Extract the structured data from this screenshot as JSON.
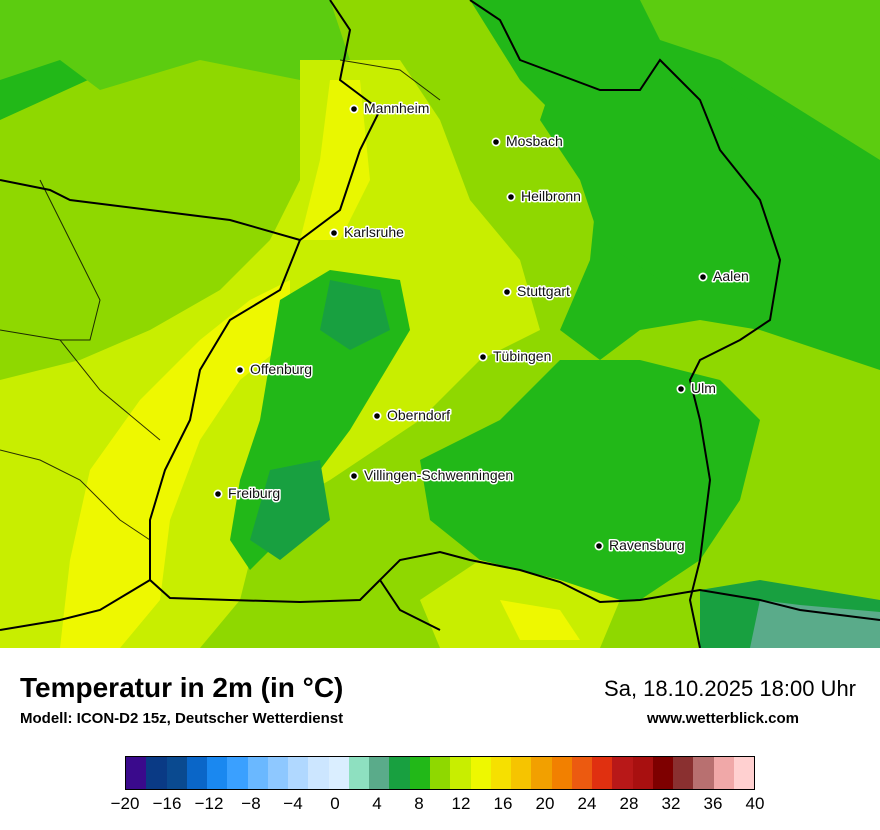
{
  "map": {
    "cities": [
      {
        "name": "Mannheim",
        "marker": "city-dot"
      },
      {
        "name": "Mosbach",
        "marker": "city-dot"
      },
      {
        "name": "Heilbronn",
        "marker": "city-dot"
      },
      {
        "name": "Karlsruhe",
        "marker": "city-dot"
      },
      {
        "name": "Aalen",
        "marker": "city-dot"
      },
      {
        "name": "Stuttgart",
        "marker": "city-dot"
      },
      {
        "name": "Tübingen",
        "marker": "city-dot"
      },
      {
        "name": "Offenburg",
        "marker": "city-dot"
      },
      {
        "name": "Ulm",
        "marker": "city-dot"
      },
      {
        "name": "Oberndorf",
        "marker": "city-dot"
      },
      {
        "name": "Villingen-Schwenningen",
        "marker": "city-dot"
      },
      {
        "name": "Freiburg",
        "marker": "city-dot"
      },
      {
        "name": "Ravensburg",
        "marker": "city-dot"
      }
    ]
  },
  "footer": {
    "title": "Temperatur in 2m (in °C)",
    "model": "Modell: ICON-D2 15z, Deutscher Wetterdienst",
    "datetime": "Sa, 18.10.2025 18:00 Uhr",
    "website": "www.wetterblick.com"
  },
  "legend": {
    "ticks": [
      "−20",
      "−16",
      "−12",
      "−8",
      "−4",
      "0",
      "4",
      "8",
      "12",
      "16",
      "20",
      "24",
      "28",
      "32",
      "36",
      "40"
    ],
    "colors": [
      "#3a0a8c",
      "#0a3a85",
      "#0a4a90",
      "#0a66c8",
      "#1a88f0",
      "#3aa0ff",
      "#6ab8ff",
      "#8ec8ff",
      "#b0d8ff",
      "#cce6ff",
      "#daeeff",
      "#8ee0c0",
      "#5aab8a",
      "#18a040",
      "#22b818",
      "#8fd800",
      "#c8ee00",
      "#eef800",
      "#f6e000",
      "#f6c400",
      "#f2a000",
      "#f28000",
      "#ec5a10",
      "#e03010",
      "#b81818",
      "#a81010",
      "#7e0000",
      "#8a3030",
      "#b87070",
      "#f0a8a8",
      "#ffd0d0"
    ],
    "range": [
      -20,
      40
    ]
  }
}
